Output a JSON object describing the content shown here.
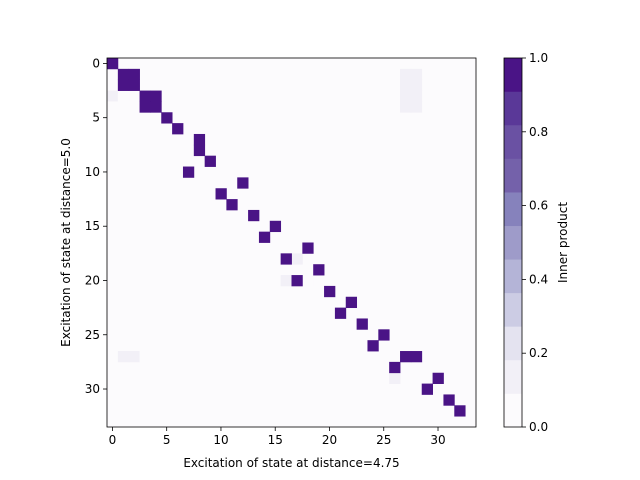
{
  "chart_data": {
    "type": "heatmap",
    "xlabel": "Excitation of state at distance=4.75",
    "ylabel": "Excitation of state at distance=5.0",
    "n_rows": 34,
    "n_cols": 34,
    "x_ticks": [
      0,
      5,
      10,
      15,
      20,
      25,
      30
    ],
    "y_ticks": [
      0,
      5,
      10,
      15,
      20,
      25,
      30
    ],
    "x_tick_labels": [
      "0",
      "5",
      "10",
      "15",
      "20",
      "25",
      "30"
    ],
    "y_tick_labels": [
      "0",
      "5",
      "10",
      "15",
      "20",
      "25",
      "30"
    ],
    "colorbar": {
      "label": "Inner product",
      "vmin": 0.0,
      "vmax": 1.0,
      "ticks": [
        0.0,
        0.2,
        0.4,
        0.6,
        0.8,
        1.0
      ],
      "tick_labels": [
        "0.0",
        "0.2",
        "0.4",
        "0.6",
        "0.8",
        "1.0"
      ],
      "levels": 11,
      "colormap": [
        "#fcfbfd",
        "#f2f0f7",
        "#e4e3f0",
        "#cccce4",
        "#b4b4d7",
        "#9e9bc9",
        "#8682bc",
        "#7461aa",
        "#6a51a3",
        "#5a3898",
        "#4a1486"
      ]
    },
    "high_cells": [
      [
        0,
        0,
        0.95
      ],
      [
        1,
        1,
        0.95
      ],
      [
        1,
        2,
        0.95
      ],
      [
        2,
        1,
        0.95
      ],
      [
        2,
        2,
        0.95
      ],
      [
        3,
        3,
        0.95
      ],
      [
        3,
        4,
        0.95
      ],
      [
        4,
        3,
        0.95
      ],
      [
        4,
        4,
        0.95
      ],
      [
        5,
        5,
        0.95
      ],
      [
        6,
        6,
        0.95
      ],
      [
        7,
        8,
        0.95
      ],
      [
        8,
        8,
        0.95
      ],
      [
        9,
        9,
        0.95
      ],
      [
        10,
        7,
        0.95
      ],
      [
        11,
        12,
        0.95
      ],
      [
        12,
        10,
        0.95
      ],
      [
        13,
        11,
        0.95
      ],
      [
        14,
        13,
        0.95
      ],
      [
        15,
        15,
        0.95
      ],
      [
        16,
        14,
        0.95
      ],
      [
        17,
        18,
        0.95
      ],
      [
        18,
        16,
        0.95
      ],
      [
        19,
        19,
        0.95
      ],
      [
        20,
        17,
        0.95
      ],
      [
        21,
        20,
        0.95
      ],
      [
        22,
        22,
        0.95
      ],
      [
        23,
        21,
        0.95
      ],
      [
        24,
        23,
        0.95
      ],
      [
        25,
        25,
        0.95
      ],
      [
        26,
        24,
        0.95
      ],
      [
        27,
        27,
        0.95
      ],
      [
        27,
        28,
        0.95
      ],
      [
        28,
        26,
        0.95
      ],
      [
        29,
        30,
        0.95
      ],
      [
        30,
        29,
        0.95
      ],
      [
        31,
        31,
        0.95
      ],
      [
        32,
        32,
        0.95
      ]
    ],
    "low_cells": [
      [
        0,
        3,
        0.05
      ],
      [
        0,
        4,
        0.05
      ],
      [
        1,
        27,
        0.15
      ],
      [
        1,
        28,
        0.15
      ],
      [
        2,
        27,
        0.15
      ],
      [
        2,
        28,
        0.15
      ],
      [
        3,
        0,
        0.1
      ],
      [
        3,
        1,
        0.05
      ],
      [
        3,
        14,
        0.05
      ],
      [
        3,
        22,
        0.05
      ],
      [
        3,
        27,
        0.1
      ],
      [
        3,
        28,
        0.1
      ],
      [
        4,
        0,
        0.05
      ],
      [
        4,
        12,
        0.05
      ],
      [
        4,
        14,
        0.05
      ],
      [
        4,
        22,
        0.05
      ],
      [
        4,
        27,
        0.1
      ],
      [
        4,
        28,
        0.1
      ],
      [
        6,
        17,
        0.05
      ],
      [
        6,
        25,
        0.05
      ],
      [
        6,
        33,
        0.05
      ],
      [
        11,
        3,
        0.05
      ],
      [
        12,
        14,
        0.05
      ],
      [
        15,
        3,
        0.05
      ],
      [
        16,
        10,
        0.05
      ],
      [
        17,
        16,
        0.05
      ],
      [
        18,
        17,
        0.1
      ],
      [
        20,
        16,
        0.1
      ],
      [
        20,
        18,
        0.05
      ],
      [
        22,
        3,
        0.05
      ],
      [
        27,
        1,
        0.1
      ],
      [
        27,
        2,
        0.1
      ],
      [
        27,
        3,
        0.05
      ],
      [
        27,
        26,
        0.05
      ],
      [
        28,
        29,
        0.05
      ],
      [
        29,
        26,
        0.1
      ],
      [
        31,
        30,
        0.05
      ]
    ]
  }
}
